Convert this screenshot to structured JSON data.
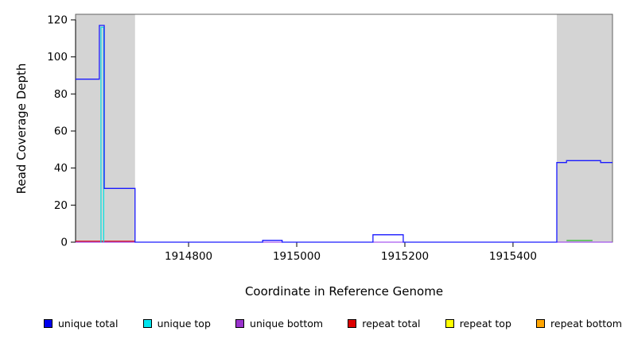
{
  "chart_data": {
    "type": "line",
    "title": "",
    "xlabel": "Coordinate in Reference Genome",
    "ylabel": "Read Coverage Depth",
    "xlim": [
      1914591,
      1915584
    ],
    "ylim": [
      0,
      123
    ],
    "xticks": [
      1914800,
      1915000,
      1915200,
      1915400
    ],
    "yticks": [
      0,
      20,
      40,
      60,
      80,
      100,
      120
    ],
    "grid": false,
    "plot_bg": "#ffffff",
    "box_color": "#555555",
    "shaded_regions": [
      {
        "name": "shaded-region-left",
        "x0": 1914591,
        "x1": 1914701,
        "color": "#d4d4d4"
      },
      {
        "name": "shaded-region-right",
        "x0": 1915481,
        "x1": 1915584,
        "color": "#d4d4d4"
      }
    ],
    "series": [
      {
        "name": "unique-bottom-baseline",
        "color": "#912cee",
        "width": 1,
        "steps": [
          [
            1914591,
            0
          ],
          [
            1915584,
            0
          ]
        ]
      },
      {
        "name": "red-baseline-mark-left",
        "color": "#dd0000",
        "width": 1.2,
        "steps": [
          [
            1914591,
            0.5
          ],
          [
            1914701,
            0.5
          ]
        ]
      },
      {
        "name": "green-baseline-mark-right",
        "color": "#2eb82e",
        "width": 1.2,
        "steps": [
          [
            1915499,
            0.9
          ],
          [
            1915547,
            0.9
          ]
        ]
      },
      {
        "name": "unique-top-spike",
        "color": "#00e0e0",
        "width": 1.2,
        "steps": [
          [
            1914637,
            0
          ],
          [
            1914638,
            116
          ],
          [
            1914643,
            0
          ]
        ]
      },
      {
        "name": "unique-total",
        "color": "#1a1aff",
        "width": 1.3,
        "steps": [
          [
            1914591,
            88
          ],
          [
            1914635,
            117
          ],
          [
            1914644,
            29
          ],
          [
            1914701,
            0
          ],
          [
            1914937,
            1
          ],
          [
            1914973,
            0
          ],
          [
            1915141,
            4
          ],
          [
            1915197,
            0
          ],
          [
            1915481,
            43
          ],
          [
            1915499,
            44
          ],
          [
            1915562,
            43
          ],
          [
            1915584,
            43
          ]
        ]
      }
    ],
    "legend": [
      {
        "label": "unique total",
        "color": "#0000ee"
      },
      {
        "label": "unique top",
        "color": "#00e5ee"
      },
      {
        "label": "unique bottom",
        "color": "#9a32cd"
      },
      {
        "label": "repeat total",
        "color": "#dd0000"
      },
      {
        "label": "repeat top",
        "color": "#ffff00"
      },
      {
        "label": "repeat bottom",
        "color": "#ffa500"
      }
    ]
  }
}
